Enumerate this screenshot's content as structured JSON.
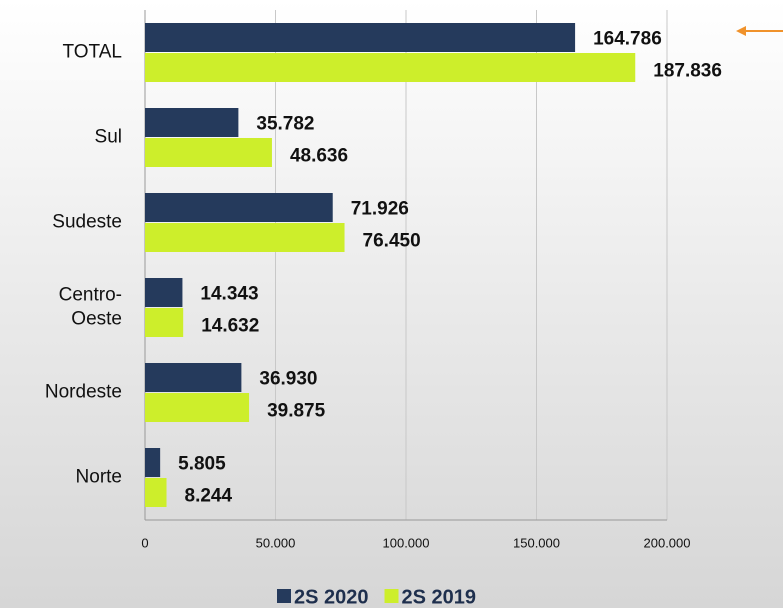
{
  "chart_data": {
    "type": "hbar",
    "categories": [
      "TOTAL",
      "Sul",
      "Sudeste",
      "Centro-Oeste",
      "Nordeste",
      "Norte"
    ],
    "series": [
      {
        "name": "2S 2020",
        "color": "#253a5c",
        "values": [
          164786,
          35782,
          71926,
          14343,
          36930,
          5805
        ],
        "value_labels": [
          "164.786",
          "35.782",
          "71.926",
          "14.343",
          "36.930",
          "5.805"
        ]
      },
      {
        "name": "2S 2019",
        "color": "#cdee2b",
        "values": [
          187836,
          48636,
          76450,
          14632,
          39875,
          8244
        ],
        "value_labels": [
          "187.836",
          "48.636",
          "76.450",
          "14.632",
          "39.875",
          "8.244"
        ]
      }
    ],
    "xlim": [
      0,
      200000
    ],
    "xticks": [
      0,
      {
        "value": 50000,
        "label": "50.000"
      },
      {
        "value": 100000,
        "label": "100.000"
      },
      {
        "value": 150000,
        "label": "150.000"
      },
      {
        "value": 200000,
        "label": "200.000"
      }
    ],
    "grid": true,
    "legend": "bottom"
  }
}
